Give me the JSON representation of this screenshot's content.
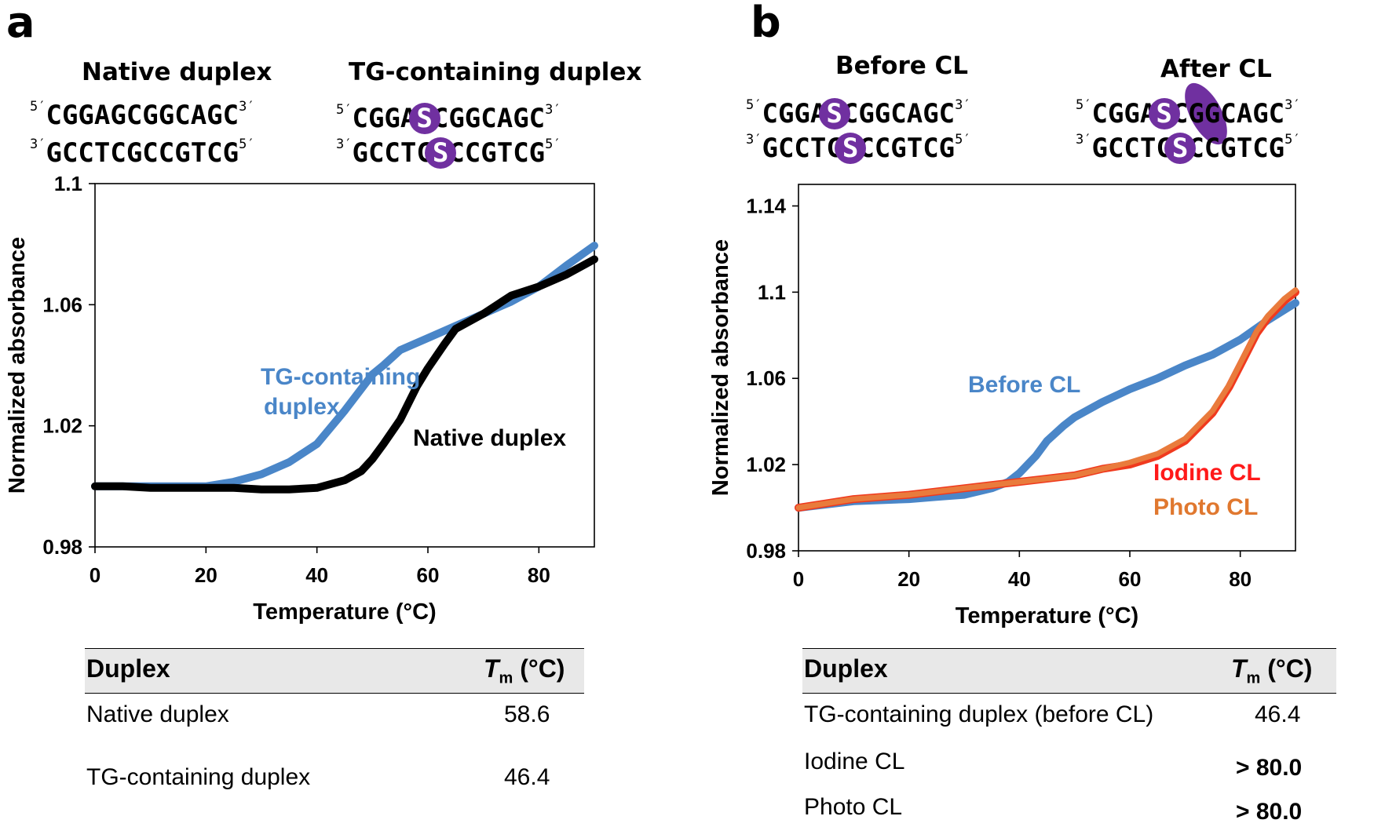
{
  "panels": {
    "a": {
      "letter": "a",
      "duplex_labels": [
        "Native duplex",
        "TG-containing duplex"
      ],
      "native_seq": {
        "top": {
          "p5": "5′",
          "seq": "CGGAGCGGCAGC",
          "p3": "3′"
        },
        "bottom": {
          "p3": "3′",
          "seq": "GCCTCGCCGTCG",
          "p5": "5′"
        }
      },
      "tg_seq": {
        "top": {
          "p5": "5′",
          "pre": "CGGA",
          "mod": "S",
          "post": "CGGCAGC",
          "p3": "3′"
        },
        "bottom": {
          "p3": "3′",
          "pre": "GCCTC",
          "mod": "S",
          "post": "CCGTCG",
          "p5": "5′"
        }
      },
      "table": {
        "col1": "Duplex",
        "col2_italic": "T",
        "col2_sub": "m",
        "col2_unit": " (°C)",
        "rows": [
          {
            "name": "Native duplex",
            "value": "58.6"
          },
          {
            "name": "TG-containing duplex",
            "value": "46.4"
          }
        ]
      }
    },
    "b": {
      "letter": "b",
      "state_labels": [
        "Before CL",
        "After CL"
      ],
      "before_seq": {
        "top": {
          "p5": "5′",
          "pre": "CGGA",
          "mod": "S",
          "post": "CGGCAGC",
          "p3": "3′"
        },
        "bottom": {
          "p3": "3′",
          "pre": "GCCTC",
          "mod": "S",
          "post": "CCGTCG",
          "p5": "5′"
        }
      },
      "after_seq": {
        "top": {
          "p5": "5′",
          "pre": "CGGA",
          "mod": "S",
          "post": "CGGCAGC",
          "p3": "3′"
        },
        "bottom": {
          "p3": "3′",
          "pre": "GCCTC",
          "mod": "S",
          "post": "CCGTCG",
          "p5": "5′"
        }
      },
      "table": {
        "col1": "Duplex",
        "col2_italic": "T",
        "col2_sub": "m",
        "col2_unit": " (°C)",
        "rows": [
          {
            "name": "TG-containing duplex (before CL)",
            "value": "46.4",
            "bold": false
          },
          {
            "name": "Iodine CL",
            "value": "> 80.0",
            "bold": true
          },
          {
            "name": "Photo CL",
            "value": "> 80.0",
            "bold": true
          }
        ]
      }
    }
  },
  "chart_data": [
    {
      "type": "line",
      "panel": "a",
      "xlabel": "Temperature (°C)",
      "ylabel": "Normalized absorbance",
      "xlim": [
        0,
        90
      ],
      "ylim": [
        0.98,
        1.1
      ],
      "xticks": [
        0,
        20,
        40,
        60,
        80
      ],
      "yticks": [
        0.98,
        1.02,
        1.06,
        1.1
      ],
      "ytick_labels": [
        "0.98",
        "1.02",
        "1.06",
        "1.1"
      ],
      "grid": false,
      "legend": "inline-labels",
      "series": [
        {
          "name": "TG-containing\nduplex",
          "color": "#4a86c8",
          "x": [
            0,
            5,
            10,
            15,
            20,
            25,
            30,
            35,
            40,
            45,
            50,
            52,
            55,
            60,
            65,
            70,
            75,
            80,
            85,
            90
          ],
          "y": [
            1.0,
            1.0,
            1.0,
            1.0,
            1.0,
            1.0015,
            1.004,
            1.008,
            1.014,
            1.025,
            1.037,
            1.04,
            1.045,
            1.049,
            1.053,
            1.057,
            1.061,
            1.066,
            1.073,
            1.0795
          ]
        },
        {
          "name": "Native duplex",
          "color": "#000000",
          "x": [
            0,
            5,
            10,
            15,
            20,
            25,
            30,
            35,
            40,
            45,
            48,
            50,
            52,
            55,
            58,
            60,
            63,
            65,
            70,
            75,
            80,
            85,
            90
          ],
          "y": [
            1.0,
            1.0,
            0.9995,
            0.9995,
            0.9995,
            0.9995,
            0.999,
            0.999,
            0.9995,
            1.002,
            1.005,
            1.009,
            1.014,
            1.022,
            1.033,
            1.039,
            1.047,
            1.052,
            1.057,
            1.063,
            1.066,
            1.07,
            1.075
          ]
        }
      ],
      "label_colors": {
        "tg": "#4a86c8",
        "native": "#000000"
      }
    },
    {
      "type": "line",
      "panel": "b",
      "xlabel": "Temperature (°C)",
      "ylabel": "Normalized absorbance",
      "xlim": [
        0,
        90
      ],
      "ylim": [
        0.98,
        1.15
      ],
      "xticks": [
        0,
        20,
        40,
        60,
        80
      ],
      "yticks": [
        0.98,
        1.02,
        1.06,
        1.1,
        1.14
      ],
      "ytick_labels": [
        "0.98",
        "1.02",
        "1.06",
        "1.1",
        "1.14"
      ],
      "grid": false,
      "legend": "inline-labels",
      "series": [
        {
          "name": "Before CL",
          "color": "#4a86c8",
          "x": [
            0,
            10,
            20,
            25,
            30,
            35,
            38,
            40,
            43,
            45,
            48,
            50,
            55,
            60,
            65,
            70,
            75,
            80,
            85,
            90
          ],
          "y": [
            1.0,
            1.003,
            1.004,
            1.005,
            1.006,
            1.009,
            1.012,
            1.016,
            1.024,
            1.031,
            1.038,
            1.042,
            1.049,
            1.055,
            1.06,
            1.066,
            1.071,
            1.078,
            1.087,
            1.095
          ]
        },
        {
          "name": "Iodine CL",
          "color": "#f03a1e",
          "x": [
            0,
            10,
            20,
            30,
            40,
            50,
            55,
            60,
            65,
            70,
            75,
            78,
            80,
            83,
            85,
            88,
            90
          ],
          "y": [
            1.0,
            1.004,
            1.006,
            1.009,
            1.012,
            1.015,
            1.018,
            1.02,
            1.024,
            1.031,
            1.044,
            1.056,
            1.066,
            1.081,
            1.088,
            1.096,
            1.1
          ]
        },
        {
          "name": "Photo CL",
          "color": "#e97b3c",
          "x": [
            0,
            10,
            20,
            30,
            40,
            50,
            55,
            60,
            65,
            70,
            75,
            78,
            80,
            83,
            85,
            88,
            90
          ],
          "y": [
            1.0,
            1.004,
            1.006,
            1.009,
            1.012,
            1.015,
            1.018,
            1.021,
            1.025,
            1.032,
            1.045,
            1.057,
            1.067,
            1.082,
            1.089,
            1.097,
            1.101
          ]
        }
      ],
      "label_colors": {
        "before": "#4a86c8",
        "iodine": "#ff1a1a",
        "photo": "#e0782f"
      }
    }
  ]
}
